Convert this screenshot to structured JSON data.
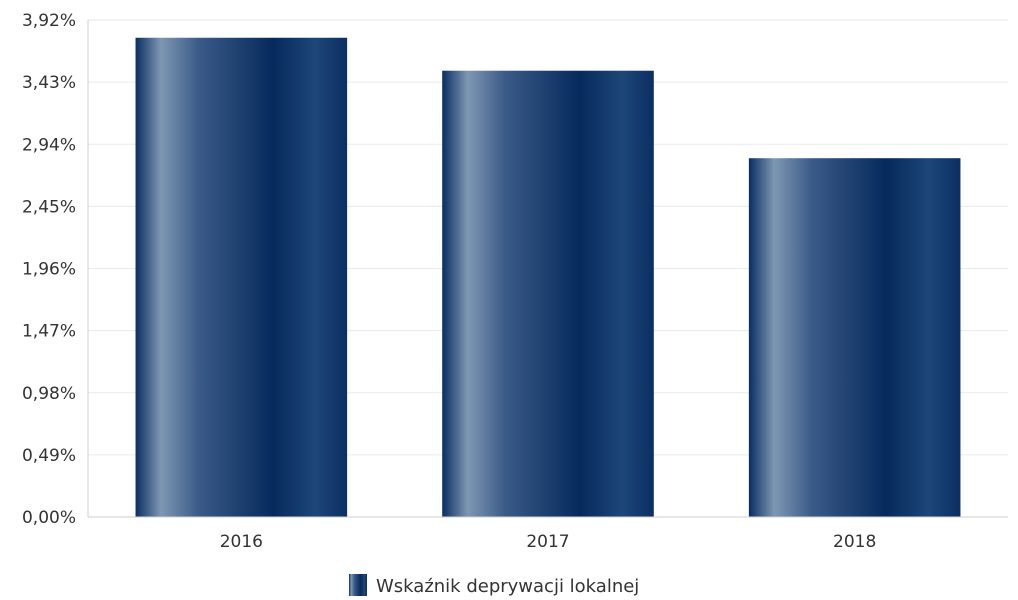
{
  "chart_data": {
    "type": "bar",
    "categories": [
      "2016",
      "2017",
      "2018"
    ],
    "series": [
      {
        "name": "Wskaźnik deprywacji lokalnej",
        "values": [
          3.78,
          3.52,
          2.83
        ]
      }
    ],
    "ylim": [
      0,
      3.92
    ],
    "yticks": [
      "0,00%",
      "0,49%",
      "0,98%",
      "1,47%",
      "1,96%",
      "2,45%",
      "2,94%",
      "3,43%",
      "3,92%"
    ],
    "grid": true,
    "legend_position": "bottom-center",
    "colors": {
      "bar_dark": "#0a2e62",
      "bar_light": "#7e97b3",
      "grid": "#eaeaea",
      "axis": "#cfcfcf",
      "text": "#333333"
    }
  }
}
